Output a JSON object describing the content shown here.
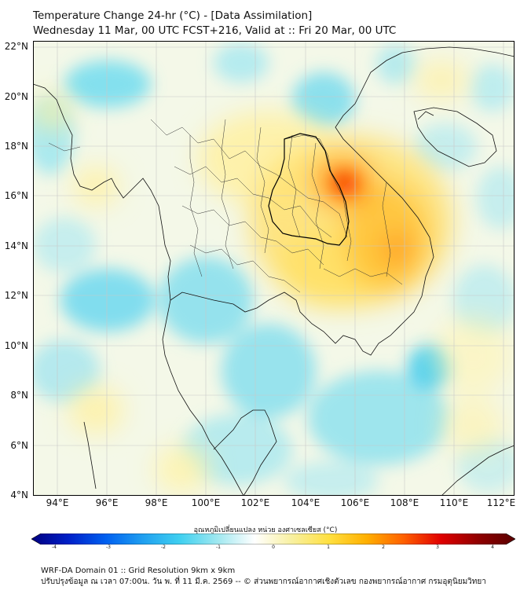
{
  "title": {
    "line1": "Temperature Change 24-hr (°C) - [Data Assimilation]",
    "line2": "Wednesday 11 Mar, 00 UTC FCST+216, Valid at :: Fri 20 Mar, 00 UTC"
  },
  "axes": {
    "lat_labels": [
      "22°N",
      "20°N",
      "18°N",
      "16°N",
      "14°N",
      "12°N",
      "10°N",
      "8°N",
      "6°N",
      "4°N"
    ],
    "lon_labels": [
      "94°E",
      "96°E",
      "98°E",
      "100°E",
      "102°E",
      "104°E",
      "106°E",
      "108°E",
      "110°E",
      "112°E"
    ]
  },
  "colorbar": {
    "title": "อุณหภูมิเปลี่ยนแปลง หน่วย องศาเซลเซียส (°C)",
    "tick_labels": [
      "-4",
      "-3",
      "-2",
      "-1",
      "0",
      "1",
      "2",
      "3",
      "4"
    ],
    "colors": [
      "#000080",
      "#0020c8",
      "#0060f0",
      "#20a0f0",
      "#40d0f0",
      "#a0e8f0",
      "#ffffff",
      "#f8f0a0",
      "#ffe040",
      "#ffb000",
      "#ff6000",
      "#e00000",
      "#900000",
      "#5a0000"
    ]
  },
  "footer": {
    "line1": "WRF-DA Domain 01 :: Grid Resolution 9km x 9km",
    "line2": "ปรับปรุงข้อมูล ณ เวลา 07:00น. วัน พ. ที่ 11 มี.ค. 2569 -- © ส่วนพยากรณ์อากาศเชิงตัวเลข กองพยากรณ์อากาศ กรมอุตุนิยมวิทยา"
  },
  "field": {
    "background_color": "#f4f8e8",
    "warm_color": "#ffd000",
    "hot_color": "#ff4000",
    "cool_color": "#40d0f0",
    "border_color": "#111111"
  }
}
